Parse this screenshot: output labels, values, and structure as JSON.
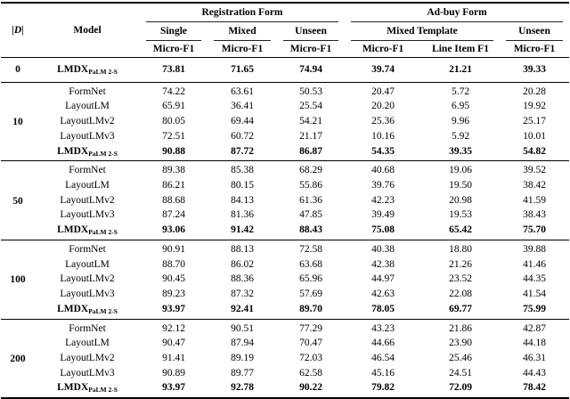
{
  "header": {
    "dataset_size": "|D|",
    "model": "Model",
    "reg_form": "Registration Form",
    "adbuy_form": "Ad-buy Form",
    "single": "Single",
    "mixed": "Mixed",
    "unseen_reg": "Unseen",
    "mixed_template": "Mixed Template",
    "unseen_adbuy": "Unseen",
    "micro_f1": "Micro-F1",
    "line_item_f1": "Line Item F1"
  },
  "colors": {
    "text": "#000000",
    "rule": "#000000",
    "background": "#ffffff"
  },
  "table": {
    "row_groups": [
      {
        "size": "0",
        "rows": [
          {
            "model": "LMDX",
            "model_sub": "PaLM 2-S",
            "highlight": true,
            "values": [
              "73.81",
              "71.65",
              "74.94",
              "39.74",
              "21.21",
              "39.33"
            ]
          }
        ]
      },
      {
        "size": "10",
        "rows": [
          {
            "model": "FormNet",
            "model_sub": "",
            "highlight": false,
            "values": [
              "74.22",
              "63.61",
              "50.53",
              "20.47",
              "5.72",
              "20.28"
            ]
          },
          {
            "model": "LayoutLM",
            "model_sub": "",
            "highlight": false,
            "values": [
              "65.91",
              "36.41",
              "25.54",
              "20.20",
              "6.95",
              "19.92"
            ]
          },
          {
            "model": "LayoutLMv2",
            "model_sub": "",
            "highlight": false,
            "values": [
              "80.05",
              "69.44",
              "54.21",
              "25.36",
              "9.96",
              "25.17"
            ]
          },
          {
            "model": "LayoutLMv3",
            "model_sub": "",
            "highlight": false,
            "values": [
              "72.51",
              "60.72",
              "21.17",
              "10.16",
              "5.92",
              "10.01"
            ]
          },
          {
            "model": "LMDX",
            "model_sub": "PaLM 2-S",
            "highlight": true,
            "values": [
              "90.88",
              "87.72",
              "86.87",
              "54.35",
              "39.35",
              "54.82"
            ]
          }
        ]
      },
      {
        "size": "50",
        "rows": [
          {
            "model": "FormNet",
            "model_sub": "",
            "highlight": false,
            "values": [
              "89.38",
              "85.38",
              "68.29",
              "40.68",
              "19.06",
              "39.52"
            ]
          },
          {
            "model": "LayoutLM",
            "model_sub": "",
            "highlight": false,
            "values": [
              "86.21",
              "80.15",
              "55.86",
              "39.76",
              "19.50",
              "38.42"
            ]
          },
          {
            "model": "LayoutLMv2",
            "model_sub": "",
            "highlight": false,
            "values": [
              "88.68",
              "84.13",
              "61.36",
              "42.23",
              "20.98",
              "41.59"
            ]
          },
          {
            "model": "LayoutLMv3",
            "model_sub": "",
            "highlight": false,
            "values": [
              "87.24",
              "81.36",
              "47.85",
              "39.49",
              "19.53",
              "38.43"
            ]
          },
          {
            "model": "LMDX",
            "model_sub": "PaLM 2-S",
            "highlight": true,
            "values": [
              "93.06",
              "91.42",
              "88.43",
              "75.08",
              "65.42",
              "75.70"
            ]
          }
        ]
      },
      {
        "size": "100",
        "rows": [
          {
            "model": "FormNet",
            "model_sub": "",
            "highlight": false,
            "values": [
              "90.91",
              "88.13",
              "72.58",
              "40.38",
              "18.80",
              "39.88"
            ]
          },
          {
            "model": "LayoutLM",
            "model_sub": "",
            "highlight": false,
            "values": [
              "88.70",
              "86.02",
              "63.68",
              "42.38",
              "21.26",
              "41.46"
            ]
          },
          {
            "model": "LayoutLMv2",
            "model_sub": "",
            "highlight": false,
            "values": [
              "90.45",
              "88.36",
              "65.96",
              "44.97",
              "23.52",
              "44.35"
            ]
          },
          {
            "model": "LayoutLMv3",
            "model_sub": "",
            "highlight": false,
            "values": [
              "89.23",
              "87.32",
              "57.69",
              "42.63",
              "22.08",
              "41.54"
            ]
          },
          {
            "model": "LMDX",
            "model_sub": "PaLM 2-S",
            "highlight": true,
            "values": [
              "93.97",
              "92.41",
              "89.70",
              "78.05",
              "69.77",
              "75.99"
            ]
          }
        ]
      },
      {
        "size": "200",
        "rows": [
          {
            "model": "FormNet",
            "model_sub": "",
            "highlight": false,
            "values": [
              "92.12",
              "90.51",
              "77.29",
              "43.23",
              "21.86",
              "42.87"
            ]
          },
          {
            "model": "LayoutLM",
            "model_sub": "",
            "highlight": false,
            "values": [
              "90.47",
              "87.94",
              "70.47",
              "44.66",
              "23.90",
              "44.18"
            ]
          },
          {
            "model": "LayoutLMv2",
            "model_sub": "",
            "highlight": false,
            "values": [
              "91.41",
              "89.19",
              "72.03",
              "46.54",
              "25.46",
              "46.31"
            ]
          },
          {
            "model": "LayoutLMv3",
            "model_sub": "",
            "highlight": false,
            "values": [
              "90.89",
              "89.77",
              "62.58",
              "45.16",
              "24.51",
              "44.43"
            ]
          },
          {
            "model": "LMDX",
            "model_sub": "PaLM 2-S",
            "highlight": true,
            "values": [
              "93.97",
              "92.78",
              "90.22",
              "79.82",
              "72.09",
              "78.42"
            ]
          }
        ]
      }
    ]
  }
}
